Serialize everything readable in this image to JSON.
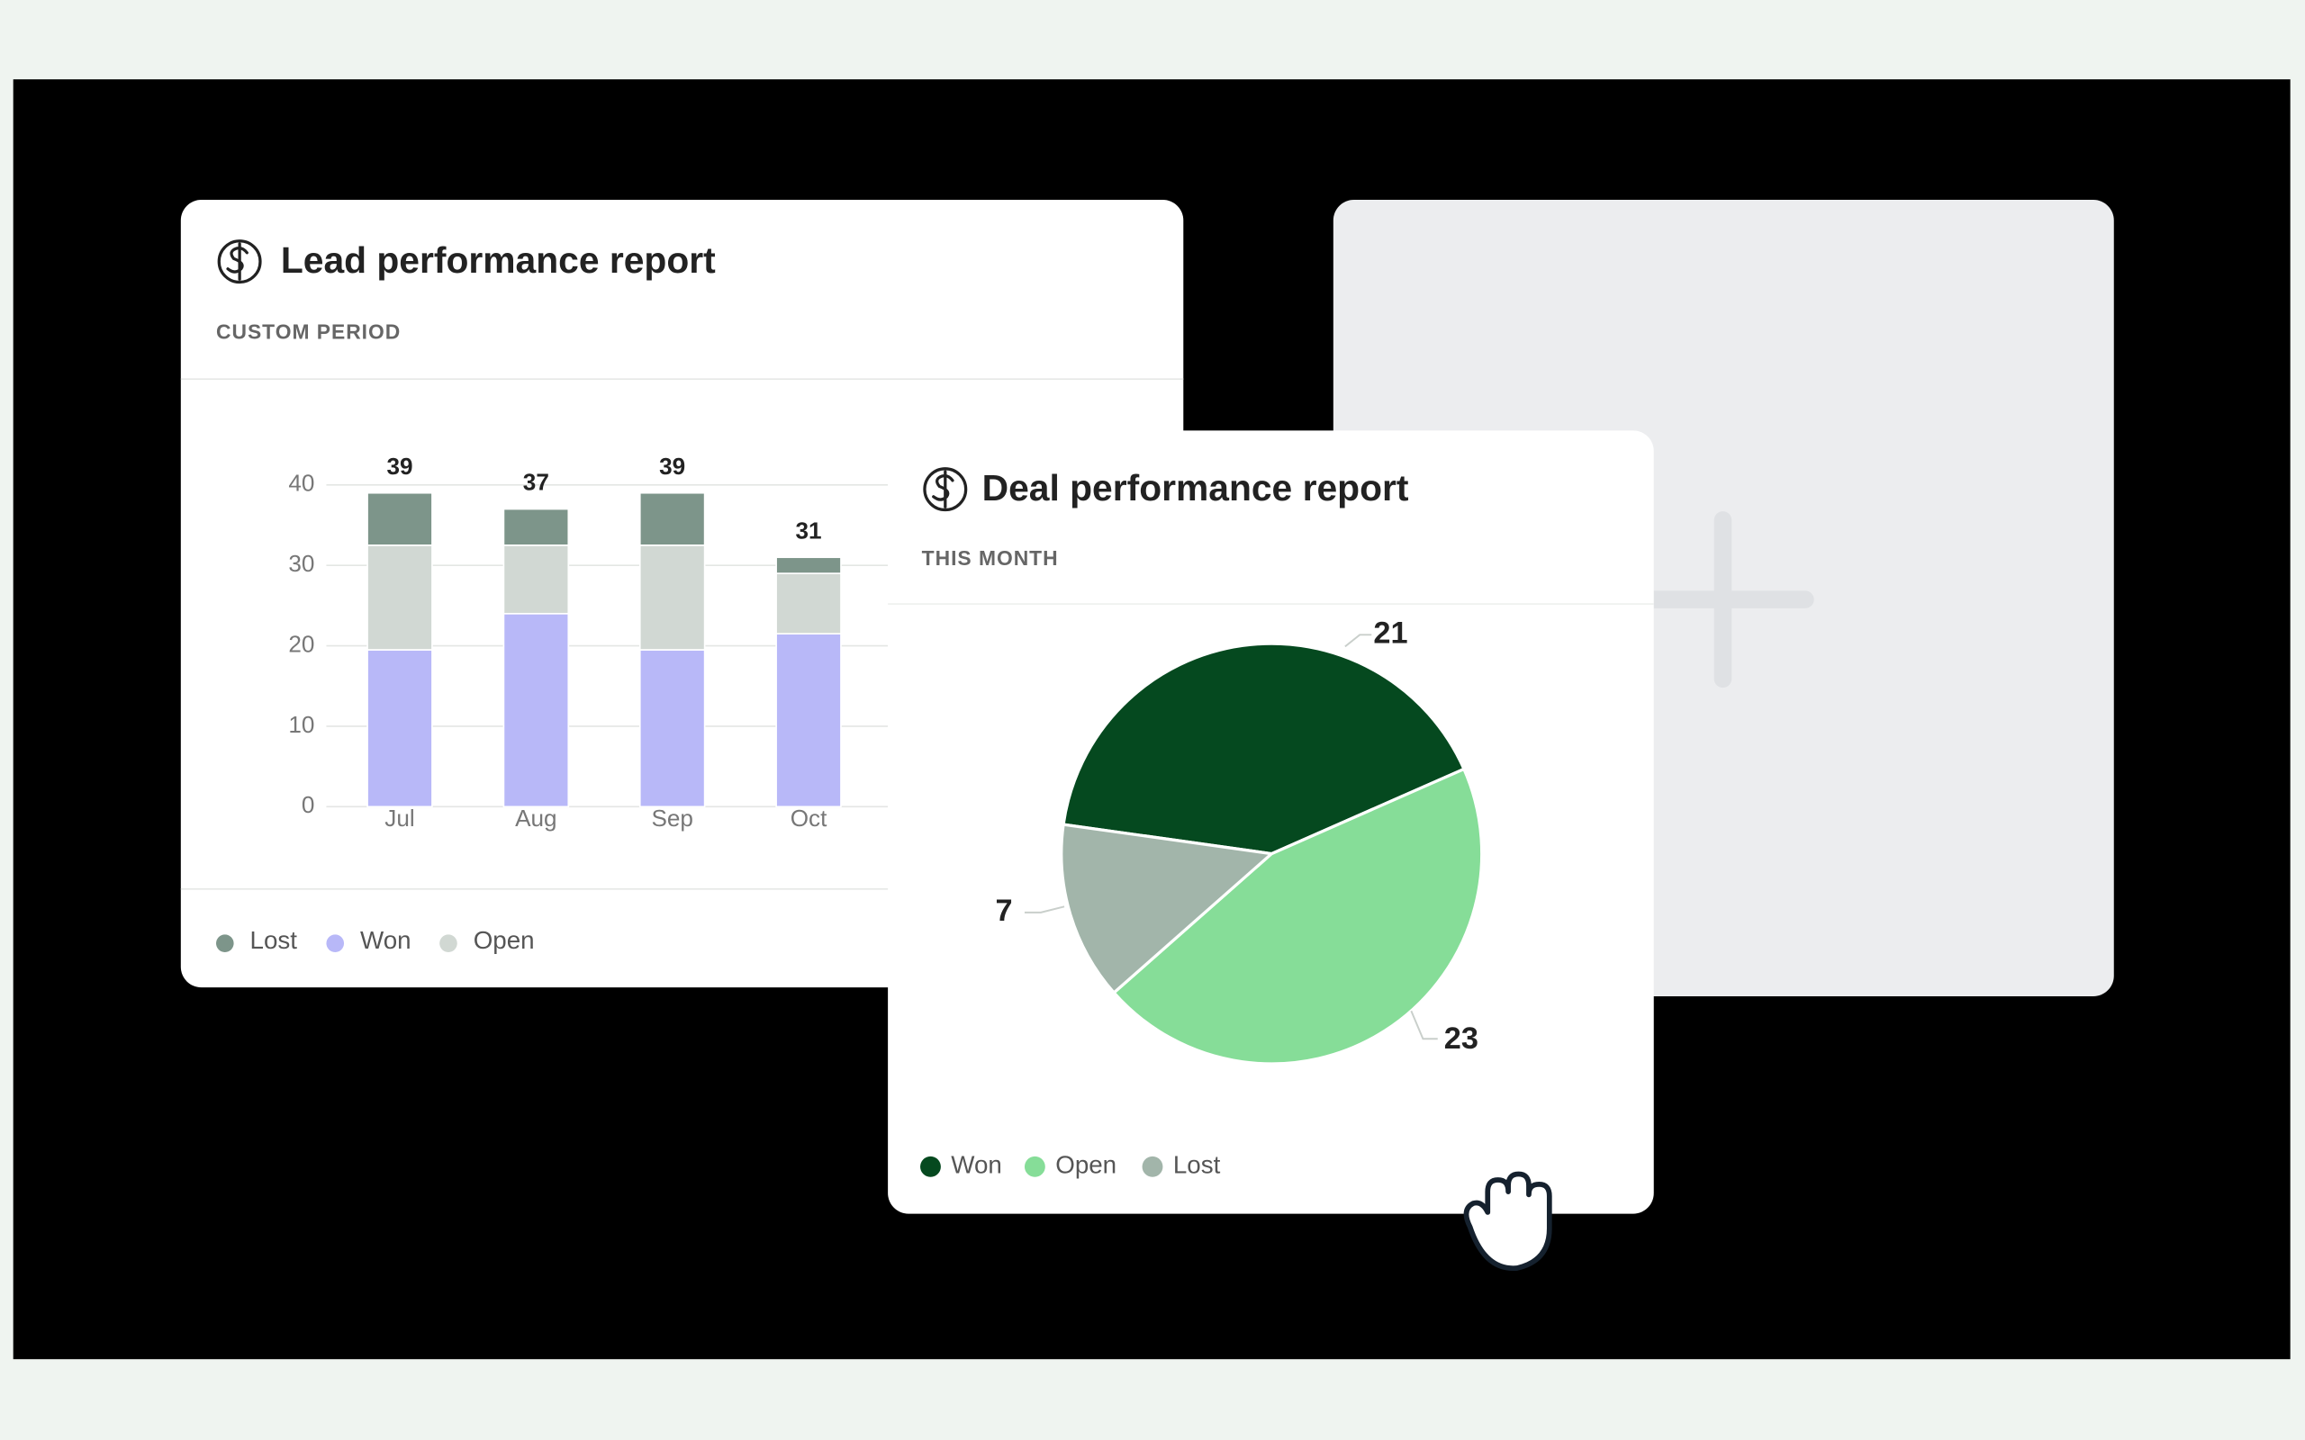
{
  "chart_data": [
    {
      "type": "bar",
      "stacked": true,
      "title": "Lead performance report",
      "subtitle": "CUSTOM PERIOD",
      "categories": [
        "Jul",
        "Aug",
        "Sep",
        "Oct"
      ],
      "series": [
        {
          "name": "Lost",
          "color": "#7d958a",
          "values": [
            6.5,
            4.5,
            6.5,
            2
          ]
        },
        {
          "name": "Won",
          "color": "#b8b8f8",
          "values": [
            19.5,
            24,
            19.5,
            21.5
          ]
        },
        {
          "name": "Open",
          "color": "#d1d8d3",
          "values": [
            13,
            8.5,
            13,
            7.5
          ]
        }
      ],
      "totals": [
        39,
        37,
        39,
        31
      ],
      "ylim": [
        0,
        40
      ],
      "yticks": [
        0,
        10,
        20,
        30,
        40
      ],
      "grid": true
    },
    {
      "type": "pie",
      "title": "Deal performance report",
      "subtitle": "THIS MONTH",
      "categories": [
        "Won",
        "Open",
        "Lost"
      ],
      "values": [
        21,
        23,
        7
      ],
      "colors": [
        "#05491f",
        "#86dd98",
        "#a2b5aa"
      ]
    }
  ]
}
